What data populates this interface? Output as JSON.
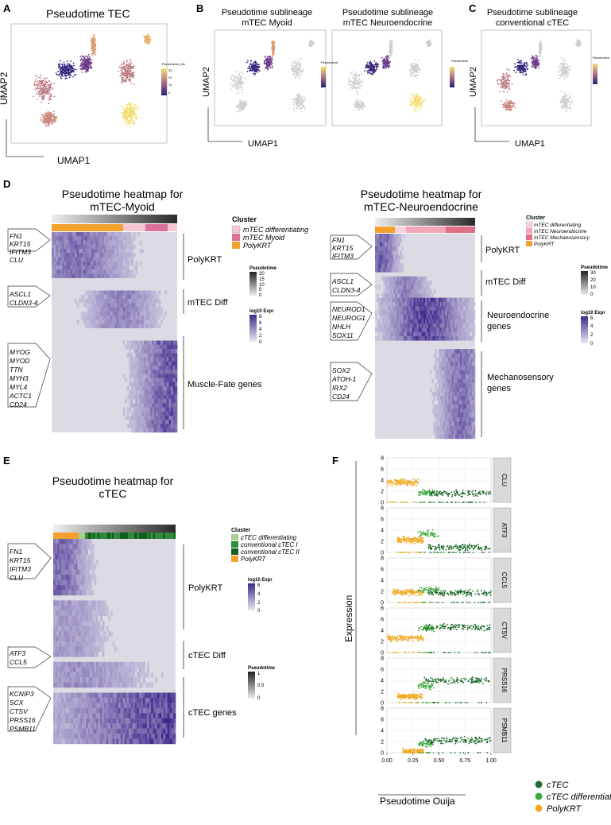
{
  "panels": {
    "a": {
      "letter": "A",
      "title": "Pseudotime TEC",
      "xlabel": "UMAP1",
      "ylabel": "UMAP2",
      "legend_title": "Pseudotime_Mu",
      "legend_ticks": [
        "30",
        "20",
        "10",
        "0"
      ]
    },
    "b": {
      "letter": "B",
      "title_left_1": "Pseudotime sublineage",
      "title_left_2": "mTEC Myoid",
      "title_right_1": "Pseudotime sublineage",
      "title_right_2": "mTEC Neuroendocrine",
      "xlabel": "UMAP1",
      "ylabel": "UMAP2",
      "legend_title": "Pseudotime"
    },
    "c": {
      "letter": "C",
      "title_1": "Pseudotime sublineage",
      "title_2": "conventional cTEC",
      "xlabel": "UMAP1",
      "ylabel": "UMAP2",
      "legend_title": "Pseudotime"
    },
    "d_left": {
      "letter": "D",
      "title_1": "Pseudotime heatmap for",
      "title_2": "mTEC-Myoid",
      "cluster_title": "Cluster",
      "clusters": [
        {
          "label": "mTEC differentiating",
          "color": "#f5c6cf"
        },
        {
          "label": "mTEC Myoid",
          "color": "#d9719b"
        },
        {
          "label": "PolyKRT",
          "color": "#f3a02e"
        }
      ],
      "pt_title": "Pseudotime",
      "pt_ticks": [
        "20",
        "15",
        "10",
        "5",
        "0"
      ],
      "expr_title": "log10 Expr",
      "expr_ticks": [
        "8",
        "6",
        "4",
        "2",
        "0"
      ],
      "gene_groups": [
        {
          "genes": [
            "FN1",
            "KRT15",
            "IFITM3",
            "CLU"
          ],
          "label": "PolyKRT"
        },
        {
          "genes": [
            "ASCL1",
            "CLDN3-4"
          ],
          "label": "mTEC Diff"
        },
        {
          "genes": [
            "MYOG",
            "MYOD",
            "TTN",
            "MYH3",
            "MYL4",
            "ACTC1",
            "CD24"
          ],
          "label": "Muscle-Fate genes"
        }
      ]
    },
    "d_right": {
      "title_1": "Pseudotime heatmap for",
      "title_2": "mTEC-Neuroendocrine",
      "cluster_title": "Cluster",
      "clusters": [
        {
          "label": "mTEC differentiating",
          "color": "#f8d3db"
        },
        {
          "label": "mTEC Neuroendocrine",
          "color": "#f2a7b8"
        },
        {
          "label": "mTEC Mechanosensory",
          "color": "#e07089"
        },
        {
          "label": "PolyKRT",
          "color": "#f3a02e"
        }
      ],
      "pt_title": "Pseudotime",
      "pt_ticks": [
        "30",
        "20",
        "10",
        "0"
      ],
      "expr_title": "log10 Expr",
      "expr_ticks": [
        "6",
        "4",
        "2",
        "0"
      ],
      "gene_groups": [
        {
          "genes": [
            "FN1",
            "KRT15",
            "IFITM3"
          ],
          "label": "PolyKRT"
        },
        {
          "genes": [
            "ASCL1",
            "CLDN3-4"
          ],
          "label": "mTEC Diff"
        },
        {
          "genes": [
            "NEUROD1",
            "NEUROG1",
            "NHLH",
            "SOX11"
          ],
          "label_1": "Neuroendocrine",
          "label_2": "genes"
        },
        {
          "genes": [
            "SOX2",
            "ATOH-1",
            "IRX2",
            "CD24"
          ],
          "label_1": "Mechanosensory",
          "label_2": "genes"
        }
      ]
    },
    "e": {
      "letter": "E",
      "title_1": "Pseudotime heatmap for",
      "title_2": "cTEC",
      "cluster_title": "Cluster",
      "clusters": [
        {
          "label": "cTEC differentiating",
          "color": "#a6d08c"
        },
        {
          "label": "conventional cTEC I",
          "color": "#2e8b3a"
        },
        {
          "label": "conventional cTEC II",
          "color": "#145c23"
        },
        {
          "label": "PolyKRT",
          "color": "#f3a02e"
        }
      ],
      "expr_title": "log10 Expr",
      "expr_ticks": [
        "6",
        "4",
        "2",
        "0"
      ],
      "pt_title": "Pseudotime",
      "pt_ticks": [
        "1",
        "0.5",
        "0"
      ],
      "gene_groups": [
        {
          "genes": [
            "FN1",
            "KRT15",
            "IFITM3",
            "CLU"
          ],
          "label": "PolyKRT"
        },
        {
          "genes": [
            "ATF3",
            "CCL5"
          ],
          "label": "cTEC Diff"
        },
        {
          "genes": [
            "KCNIP3",
            "SCX",
            "CTSV",
            "PRSS16",
            "PSMB11"
          ],
          "label": "cTEC genes"
        }
      ]
    },
    "f": {
      "letter": "F"
    }
  },
  "chart_data": {
    "type": "scatter",
    "title": "",
    "xlabel": "Pseudotime Ouija",
    "ylabel": "Expression",
    "xlim": [
      0,
      1
    ],
    "ylim": [
      0,
      8
    ],
    "x_ticks": [
      "0.00",
      "0.25",
      "0.50",
      "0.75",
      "1.00"
    ],
    "y_ticks": [
      "0",
      "2",
      "4",
      "6",
      "8"
    ],
    "facets": [
      {
        "gene": "CLU",
        "polykrt": [
          0.0,
          0.3,
          3.6
        ],
        "diff": [
          0.3,
          0.45,
          1.8
        ],
        "ctec": [
          0.4,
          1.0,
          1.6
        ]
      },
      {
        "gene": "ATF3",
        "polykrt": [
          0.1,
          0.35,
          2.2
        ],
        "diff": [
          0.3,
          0.5,
          3.3
        ],
        "ctec": [
          0.4,
          1.0,
          0.9
        ]
      },
      {
        "gene": "CCL5",
        "polykrt": [
          0.05,
          0.35,
          1.8
        ],
        "diff": [
          0.3,
          0.5,
          2.2
        ],
        "ctec": [
          0.4,
          1.0,
          1.7
        ]
      },
      {
        "gene": "CTSV",
        "polykrt": [
          0.0,
          0.35,
          2.6
        ],
        "diff": [
          0.3,
          0.45,
          4.3
        ],
        "ctec": [
          0.35,
          1.0,
          4.6
        ]
      },
      {
        "gene": "PRSS16",
        "polykrt": [
          0.1,
          0.35,
          1.2
        ],
        "diff": [
          0.3,
          0.45,
          3.0
        ],
        "ctec": [
          0.35,
          1.0,
          4.0
        ]
      },
      {
        "gene": "PSMB11",
        "polykrt": [
          0.15,
          0.35,
          0.2
        ],
        "diff": [
          0.3,
          0.45,
          1.5
        ],
        "ctec": [
          0.35,
          1.0,
          2.2
        ]
      }
    ],
    "legend": [
      {
        "label": "cTEC",
        "color": "#1e6b2c"
      },
      {
        "label": "cTEC  differentiating",
        "color": "#3eaa3f"
      },
      {
        "label": "PolyKRT",
        "color": "#f0ab24"
      }
    ]
  }
}
